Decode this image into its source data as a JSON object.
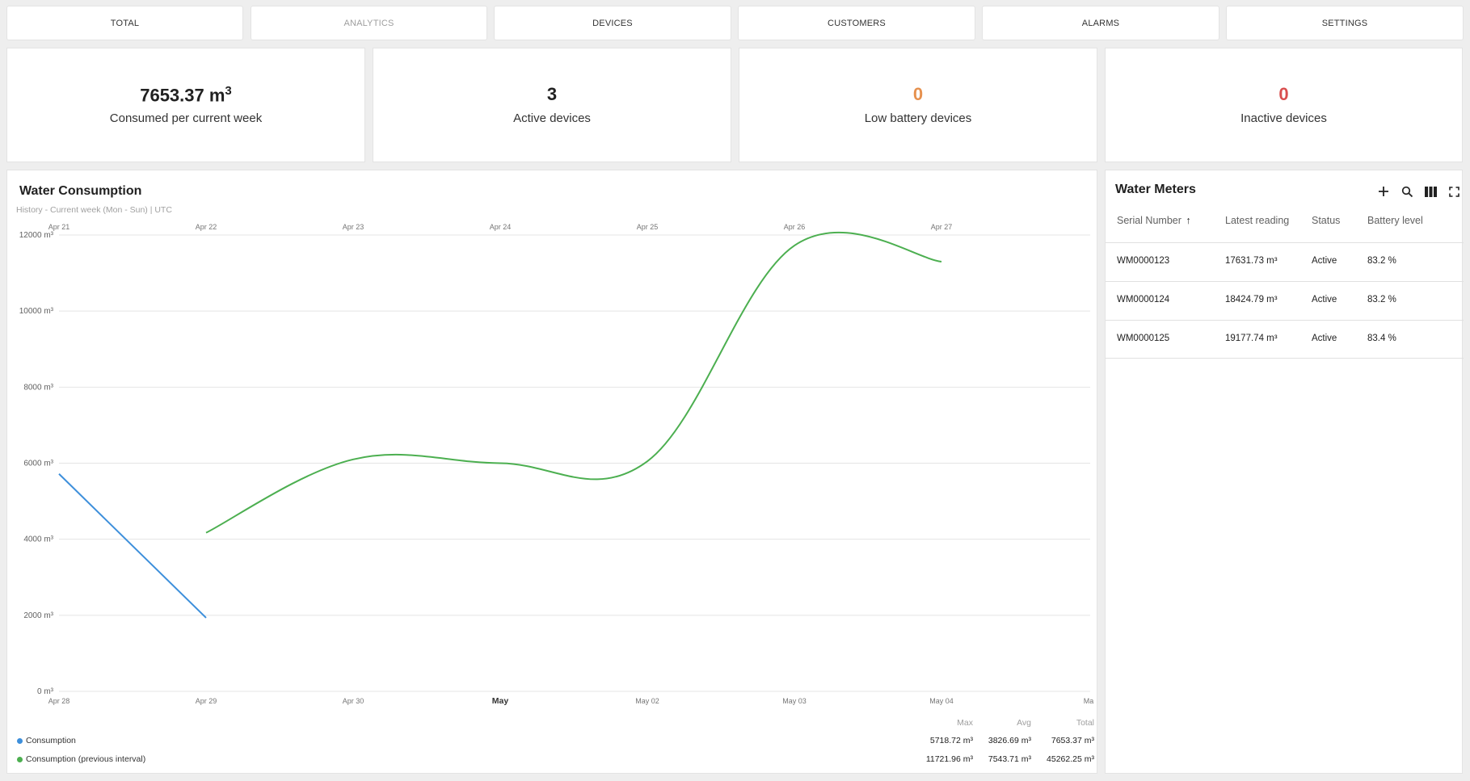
{
  "nav": {
    "buttons": [
      "TOTAL",
      "ANALYTICS",
      "DEVICES",
      "CUSTOMERS",
      "ALARMS",
      "SETTINGS"
    ]
  },
  "stats": {
    "consumed": {
      "value": "7653.37 m",
      "sup": "3",
      "label": "Consumed per current week"
    },
    "active": {
      "value": "3",
      "label": "Active devices"
    },
    "low_battery": {
      "value": "0",
      "label": "Low battery devices"
    },
    "inactive": {
      "value": "0",
      "label": "Inactive devices"
    }
  },
  "colors": {
    "consumption": "#3d8fdb",
    "previous": "#4caf50",
    "low_battery_value": "#e6914f",
    "inactive_value": "#d94f4f"
  },
  "chart": {
    "title": "Water Consumption",
    "subtitle": "History - Current week (Mon - Sun) | UTC"
  },
  "chart_data": {
    "type": "line",
    "y_ticks": [
      "0 m³",
      "2000 m³",
      "4000 m³",
      "6000 m³",
      "8000 m³",
      "10000 m³",
      "12000 m³"
    ],
    "ylim": [
      0,
      12000
    ],
    "x_top_ticks": [
      "Apr 21",
      "Apr 22",
      "Apr 23",
      "Apr 24",
      "Apr 25",
      "Apr 26",
      "Apr 27"
    ],
    "x_bottom_ticks": [
      "Apr 28",
      "Apr 29",
      "Apr 30",
      "May",
      "May 02",
      "May 03",
      "May 04",
      "Ma"
    ],
    "grid": true,
    "legend_position": "bottom-left",
    "series": [
      {
        "name": "Consumption",
        "color": "#3d8fdb",
        "points": [
          [
            0,
            5718.72
          ],
          [
            1,
            1934.65
          ]
        ]
      },
      {
        "name": "Consumption (previous interval)",
        "color": "#4caf50",
        "points": [
          [
            1,
            4170
          ],
          [
            2,
            6100
          ],
          [
            3,
            6000
          ],
          [
            4,
            6050
          ],
          [
            5,
            11721.96
          ],
          [
            6,
            11300
          ]
        ]
      }
    ],
    "stats_columns": [
      "Max",
      "Avg",
      "Total"
    ],
    "stats_rows": [
      [
        "5718.72 m³",
        "3826.69 m³",
        "7653.37 m³"
      ],
      [
        "11721.96 m³",
        "7543.71 m³",
        "45262.25 m³"
      ]
    ]
  },
  "meters": {
    "title": "Water Meters",
    "tools": [
      "add-icon",
      "search-icon",
      "columns-icon",
      "fullscreen-icon"
    ],
    "columns": [
      "Serial Number",
      "Latest reading",
      "Status",
      "Battery level"
    ],
    "sort_indicator": "↑",
    "rows": [
      [
        "WM0000123",
        "17631.73 m³",
        "Active",
        "83.2 %"
      ],
      [
        "WM0000124",
        "18424.79 m³",
        "Active",
        "83.2 %"
      ],
      [
        "WM0000125",
        "19177.74 m³",
        "Active",
        "83.4 %"
      ]
    ]
  }
}
